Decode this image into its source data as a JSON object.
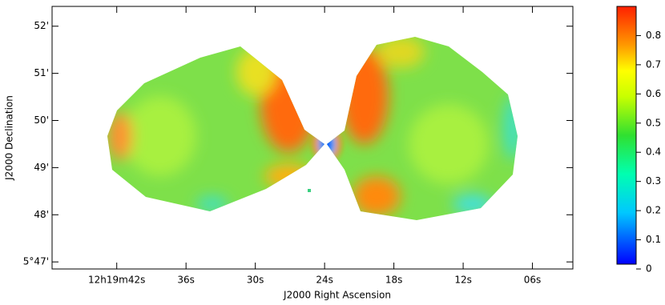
{
  "chart_data": {
    "type": "image",
    "xlabel": "J2000 Right Ascension",
    "ylabel": "J2000 Declination",
    "xlim": [
      47.6,
      2.5
    ],
    "xticks": [
      {
        "value": 42,
        "label": "12h19m42s"
      },
      {
        "value": 36,
        "label": "36s"
      },
      {
        "value": 30,
        "label": "30s"
      },
      {
        "value": 24,
        "label": "24s"
      },
      {
        "value": 18,
        "label": "18s"
      },
      {
        "value": 12,
        "label": "12s"
      },
      {
        "value": 6,
        "label": "06s"
      }
    ],
    "ylim": [
      46.85,
      52.42
    ],
    "yticks": [
      {
        "value": 47,
        "label": "5°47'"
      },
      {
        "value": 48,
        "label": "48'"
      },
      {
        "value": 49,
        "label": "49'"
      },
      {
        "value": 50,
        "label": "50'"
      },
      {
        "value": 51,
        "label": "51'"
      },
      {
        "value": 52,
        "label": "52'"
      }
    ],
    "clim": [
      0,
      0.9
    ],
    "cticks": [
      0,
      0.1,
      0.2,
      0.3,
      0.4,
      0.5,
      0.6,
      0.7,
      0.8
    ]
  }
}
